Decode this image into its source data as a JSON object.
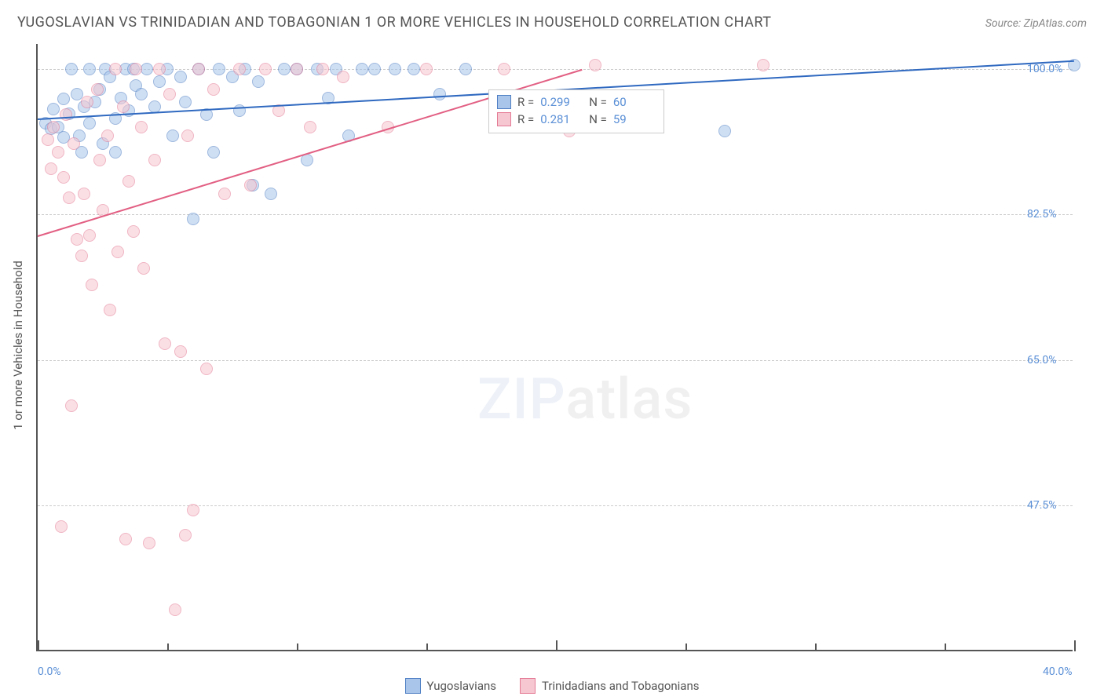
{
  "title": "YUGOSLAVIAN VS TRINIDADIAN AND TOBAGONIAN 1 OR MORE VEHICLES IN HOUSEHOLD CORRELATION CHART",
  "source": "Source: ZipAtlas.com",
  "watermark_a": "ZIP",
  "watermark_b": "atlas",
  "y_axis_title": "1 or more Vehicles in Household",
  "chart": {
    "type": "scatter",
    "xlim": [
      0,
      40
    ],
    "ylim": [
      30,
      103
    ],
    "x_ticks": [
      0,
      20,
      40
    ],
    "x_tick_labels": [
      "0.0%",
      "",
      "40.0%"
    ],
    "minor_x_ticks": [
      5,
      10,
      15,
      25,
      30,
      35
    ],
    "y_gridlines": [
      47.5,
      65.0,
      82.5,
      100.0
    ],
    "y_tick_labels": [
      "47.5%",
      "65.0%",
      "82.5%",
      "100.0%"
    ],
    "background_color": "#ffffff",
    "grid_color": "#cccccc",
    "axis_color": "#555555",
    "label_color": "#5a8fd6",
    "point_radius": 8,
    "point_opacity": 0.55,
    "series": [
      {
        "key": "yugoslavians",
        "label": "Yugoslavians",
        "fill": "#a9c6ea",
        "stroke": "#4f7fc4",
        "trend_color": "#2f69c0",
        "trend": {
          "x1": 0,
          "y1": 94.0,
          "x2": 40,
          "y2": 101.0
        },
        "stats": {
          "R": "0.299",
          "N": "60"
        },
        "points": [
          [
            0.3,
            93.5
          ],
          [
            0.5,
            92.8
          ],
          [
            0.6,
            95.2
          ],
          [
            0.8,
            93.0
          ],
          [
            1.0,
            96.4
          ],
          [
            1.0,
            91.8
          ],
          [
            1.2,
            94.6
          ],
          [
            1.3,
            100.0
          ],
          [
            1.5,
            97.0
          ],
          [
            1.6,
            92.0
          ],
          [
            1.7,
            90.0
          ],
          [
            1.8,
            95.5
          ],
          [
            2.0,
            100.0
          ],
          [
            2.0,
            93.5
          ],
          [
            2.2,
            96.0
          ],
          [
            2.4,
            97.5
          ],
          [
            2.5,
            91.0
          ],
          [
            2.6,
            100.0
          ],
          [
            2.8,
            99.0
          ],
          [
            3.0,
            94.0
          ],
          [
            3.0,
            90.0
          ],
          [
            3.2,
            96.5
          ],
          [
            3.4,
            100.0
          ],
          [
            3.5,
            95.0
          ],
          [
            3.7,
            100.0
          ],
          [
            3.8,
            98.0
          ],
          [
            4.0,
            97.0
          ],
          [
            4.2,
            100.0
          ],
          [
            4.5,
            95.5
          ],
          [
            4.7,
            98.5
          ],
          [
            5.0,
            100.0
          ],
          [
            5.2,
            92.0
          ],
          [
            5.5,
            99.0
          ],
          [
            5.7,
            96.0
          ],
          [
            6.0,
            82.0
          ],
          [
            6.2,
            100.0
          ],
          [
            6.5,
            94.5
          ],
          [
            6.8,
            90.0
          ],
          [
            7.0,
            100.0
          ],
          [
            7.5,
            99.0
          ],
          [
            7.8,
            95.0
          ],
          [
            8.0,
            100.0
          ],
          [
            8.3,
            86.0
          ],
          [
            8.5,
            98.5
          ],
          [
            9.0,
            85.0
          ],
          [
            9.5,
            100.0
          ],
          [
            10.0,
            100.0
          ],
          [
            10.4,
            89.0
          ],
          [
            10.8,
            100.0
          ],
          [
            11.2,
            96.5
          ],
          [
            11.5,
            100.0
          ],
          [
            12.0,
            92.0
          ],
          [
            12.5,
            100.0
          ],
          [
            13.0,
            100.0
          ],
          [
            13.8,
            100.0
          ],
          [
            14.5,
            100.0
          ],
          [
            15.5,
            97.0
          ],
          [
            16.5,
            100.0
          ],
          [
            26.5,
            92.5
          ],
          [
            40.0,
            100.5
          ]
        ]
      },
      {
        "key": "trinidadians",
        "label": "Trinidadians and Tobagonians",
        "fill": "#f6c7d1",
        "stroke": "#e47a95",
        "trend_color": "#e25f83",
        "trend": {
          "x1": 0,
          "y1": 80.0,
          "x2": 21.0,
          "y2": 100.0
        },
        "stats": {
          "R": "0.281",
          "N": "59"
        },
        "points": [
          [
            0.4,
            91.5
          ],
          [
            0.5,
            88.0
          ],
          [
            0.6,
            93.0
          ],
          [
            0.8,
            90.0
          ],
          [
            0.9,
            45.0
          ],
          [
            1.0,
            87.0
          ],
          [
            1.1,
            94.5
          ],
          [
            1.2,
            84.5
          ],
          [
            1.3,
            59.5
          ],
          [
            1.4,
            91.0
          ],
          [
            1.5,
            79.5
          ],
          [
            1.7,
            77.5
          ],
          [
            1.8,
            85.0
          ],
          [
            1.9,
            96.0
          ],
          [
            2.0,
            80.0
          ],
          [
            2.1,
            74.0
          ],
          [
            2.3,
            97.5
          ],
          [
            2.4,
            89.0
          ],
          [
            2.5,
            83.0
          ],
          [
            2.7,
            92.0
          ],
          [
            2.8,
            71.0
          ],
          [
            3.0,
            100.0
          ],
          [
            3.1,
            78.0
          ],
          [
            3.3,
            95.5
          ],
          [
            3.4,
            43.5
          ],
          [
            3.5,
            86.5
          ],
          [
            3.7,
            80.5
          ],
          [
            3.8,
            100.0
          ],
          [
            4.0,
            93.0
          ],
          [
            4.1,
            76.0
          ],
          [
            4.3,
            43.0
          ],
          [
            4.5,
            89.0
          ],
          [
            4.7,
            100.0
          ],
          [
            4.9,
            67.0
          ],
          [
            5.1,
            97.0
          ],
          [
            5.3,
            35.0
          ],
          [
            5.5,
            66.0
          ],
          [
            5.7,
            44.0
          ],
          [
            5.8,
            92.0
          ],
          [
            6.0,
            47.0
          ],
          [
            6.2,
            100.0
          ],
          [
            6.5,
            64.0
          ],
          [
            6.8,
            97.5
          ],
          [
            7.2,
            85.0
          ],
          [
            7.8,
            100.0
          ],
          [
            8.2,
            86.0
          ],
          [
            8.8,
            100.0
          ],
          [
            9.3,
            95.0
          ],
          [
            10.0,
            100.0
          ],
          [
            10.5,
            93.0
          ],
          [
            11.0,
            100.0
          ],
          [
            11.8,
            99.0
          ],
          [
            13.5,
            93.0
          ],
          [
            15.0,
            100.0
          ],
          [
            18.0,
            100.0
          ],
          [
            20.0,
            96.0
          ],
          [
            20.5,
            92.5
          ],
          [
            21.5,
            100.5
          ],
          [
            28.0,
            100.5
          ]
        ]
      }
    ]
  },
  "stats_box": {
    "rows": [
      {
        "swatch_fill": "#a9c6ea",
        "swatch_stroke": "#4f7fc4",
        "R_label": "R =",
        "R": "0.299",
        "N_label": "N =",
        "N": "60"
      },
      {
        "swatch_fill": "#f6c7d1",
        "swatch_stroke": "#e47a95",
        "R_label": "R =",
        "R": "0.281",
        "N_label": "N =",
        "N": "59"
      }
    ]
  }
}
